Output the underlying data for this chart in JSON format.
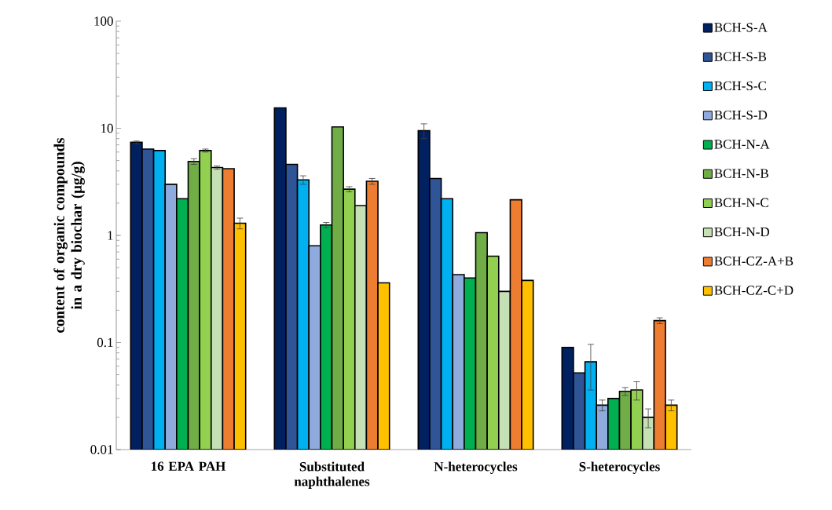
{
  "chart_data": {
    "type": "bar",
    "ylabel": "content of organic compounds in a dry biochar (μg/g)",
    "categories": [
      "16 EPA PAH",
      "Substituted naphthalenes",
      "N-heterocycles",
      "S-heterocycles"
    ],
    "log": "y",
    "ylim": [
      0.01,
      100
    ],
    "yticks": [
      0.01,
      0.1,
      1,
      10,
      100
    ],
    "legend": "right",
    "series": [
      {
        "name": "BCH-S-A",
        "color": "#002060",
        "values": [
          7.4,
          15.5,
          9.5,
          0.09
        ],
        "errors": [
          0.2,
          null,
          1.5,
          null
        ]
      },
      {
        "name": "BCH-S-B",
        "color": "#2f5597",
        "values": [
          6.4,
          4.6,
          3.4,
          0.052
        ]
      },
      {
        "name": "BCH-S-C",
        "color": "#00b0f0",
        "values": [
          6.2,
          3.3,
          2.2,
          0.066
        ],
        "errors": [
          null,
          0.3,
          null,
          0.03
        ]
      },
      {
        "name": "BCH-S-D",
        "color": "#8faadc",
        "values": [
          3.0,
          0.8,
          0.43,
          0.026
        ],
        "errors": [
          null,
          null,
          null,
          0.003
        ]
      },
      {
        "name": "BCH-N-A",
        "color": "#00b050",
        "values": [
          2.2,
          1.25,
          0.4,
          0.03
        ],
        "errors": [
          null,
          0.07,
          null,
          null
        ]
      },
      {
        "name": "BCH-N-B",
        "color": "#70ad47",
        "values": [
          4.9,
          10.3,
          1.06,
          0.035
        ],
        "errors": [
          0.3,
          null,
          null,
          0.003
        ]
      },
      {
        "name": "BCH-N-C",
        "color": "#92d050",
        "values": [
          6.2,
          2.7,
          0.64,
          0.036
        ],
        "errors": [
          0.2,
          0.15,
          null,
          0.007
        ]
      },
      {
        "name": "BCH-N-D",
        "color": "#c5e0b4",
        "values": [
          4.3,
          1.9,
          0.3,
          0.02
        ],
        "errors": [
          0.15,
          null,
          null,
          0.004
        ]
      },
      {
        "name": "BCH-CZ-A+B",
        "color": "#ed7d31",
        "values": [
          4.2,
          3.2,
          2.15,
          0.16
        ],
        "errors": [
          null,
          0.2,
          null,
          0.01
        ]
      },
      {
        "name": "BCH-CZ-C+D",
        "color": "#ffc000",
        "values": [
          1.3,
          0.36,
          0.38,
          0.026
        ],
        "errors": [
          0.15,
          null,
          null,
          0.003
        ]
      }
    ]
  }
}
